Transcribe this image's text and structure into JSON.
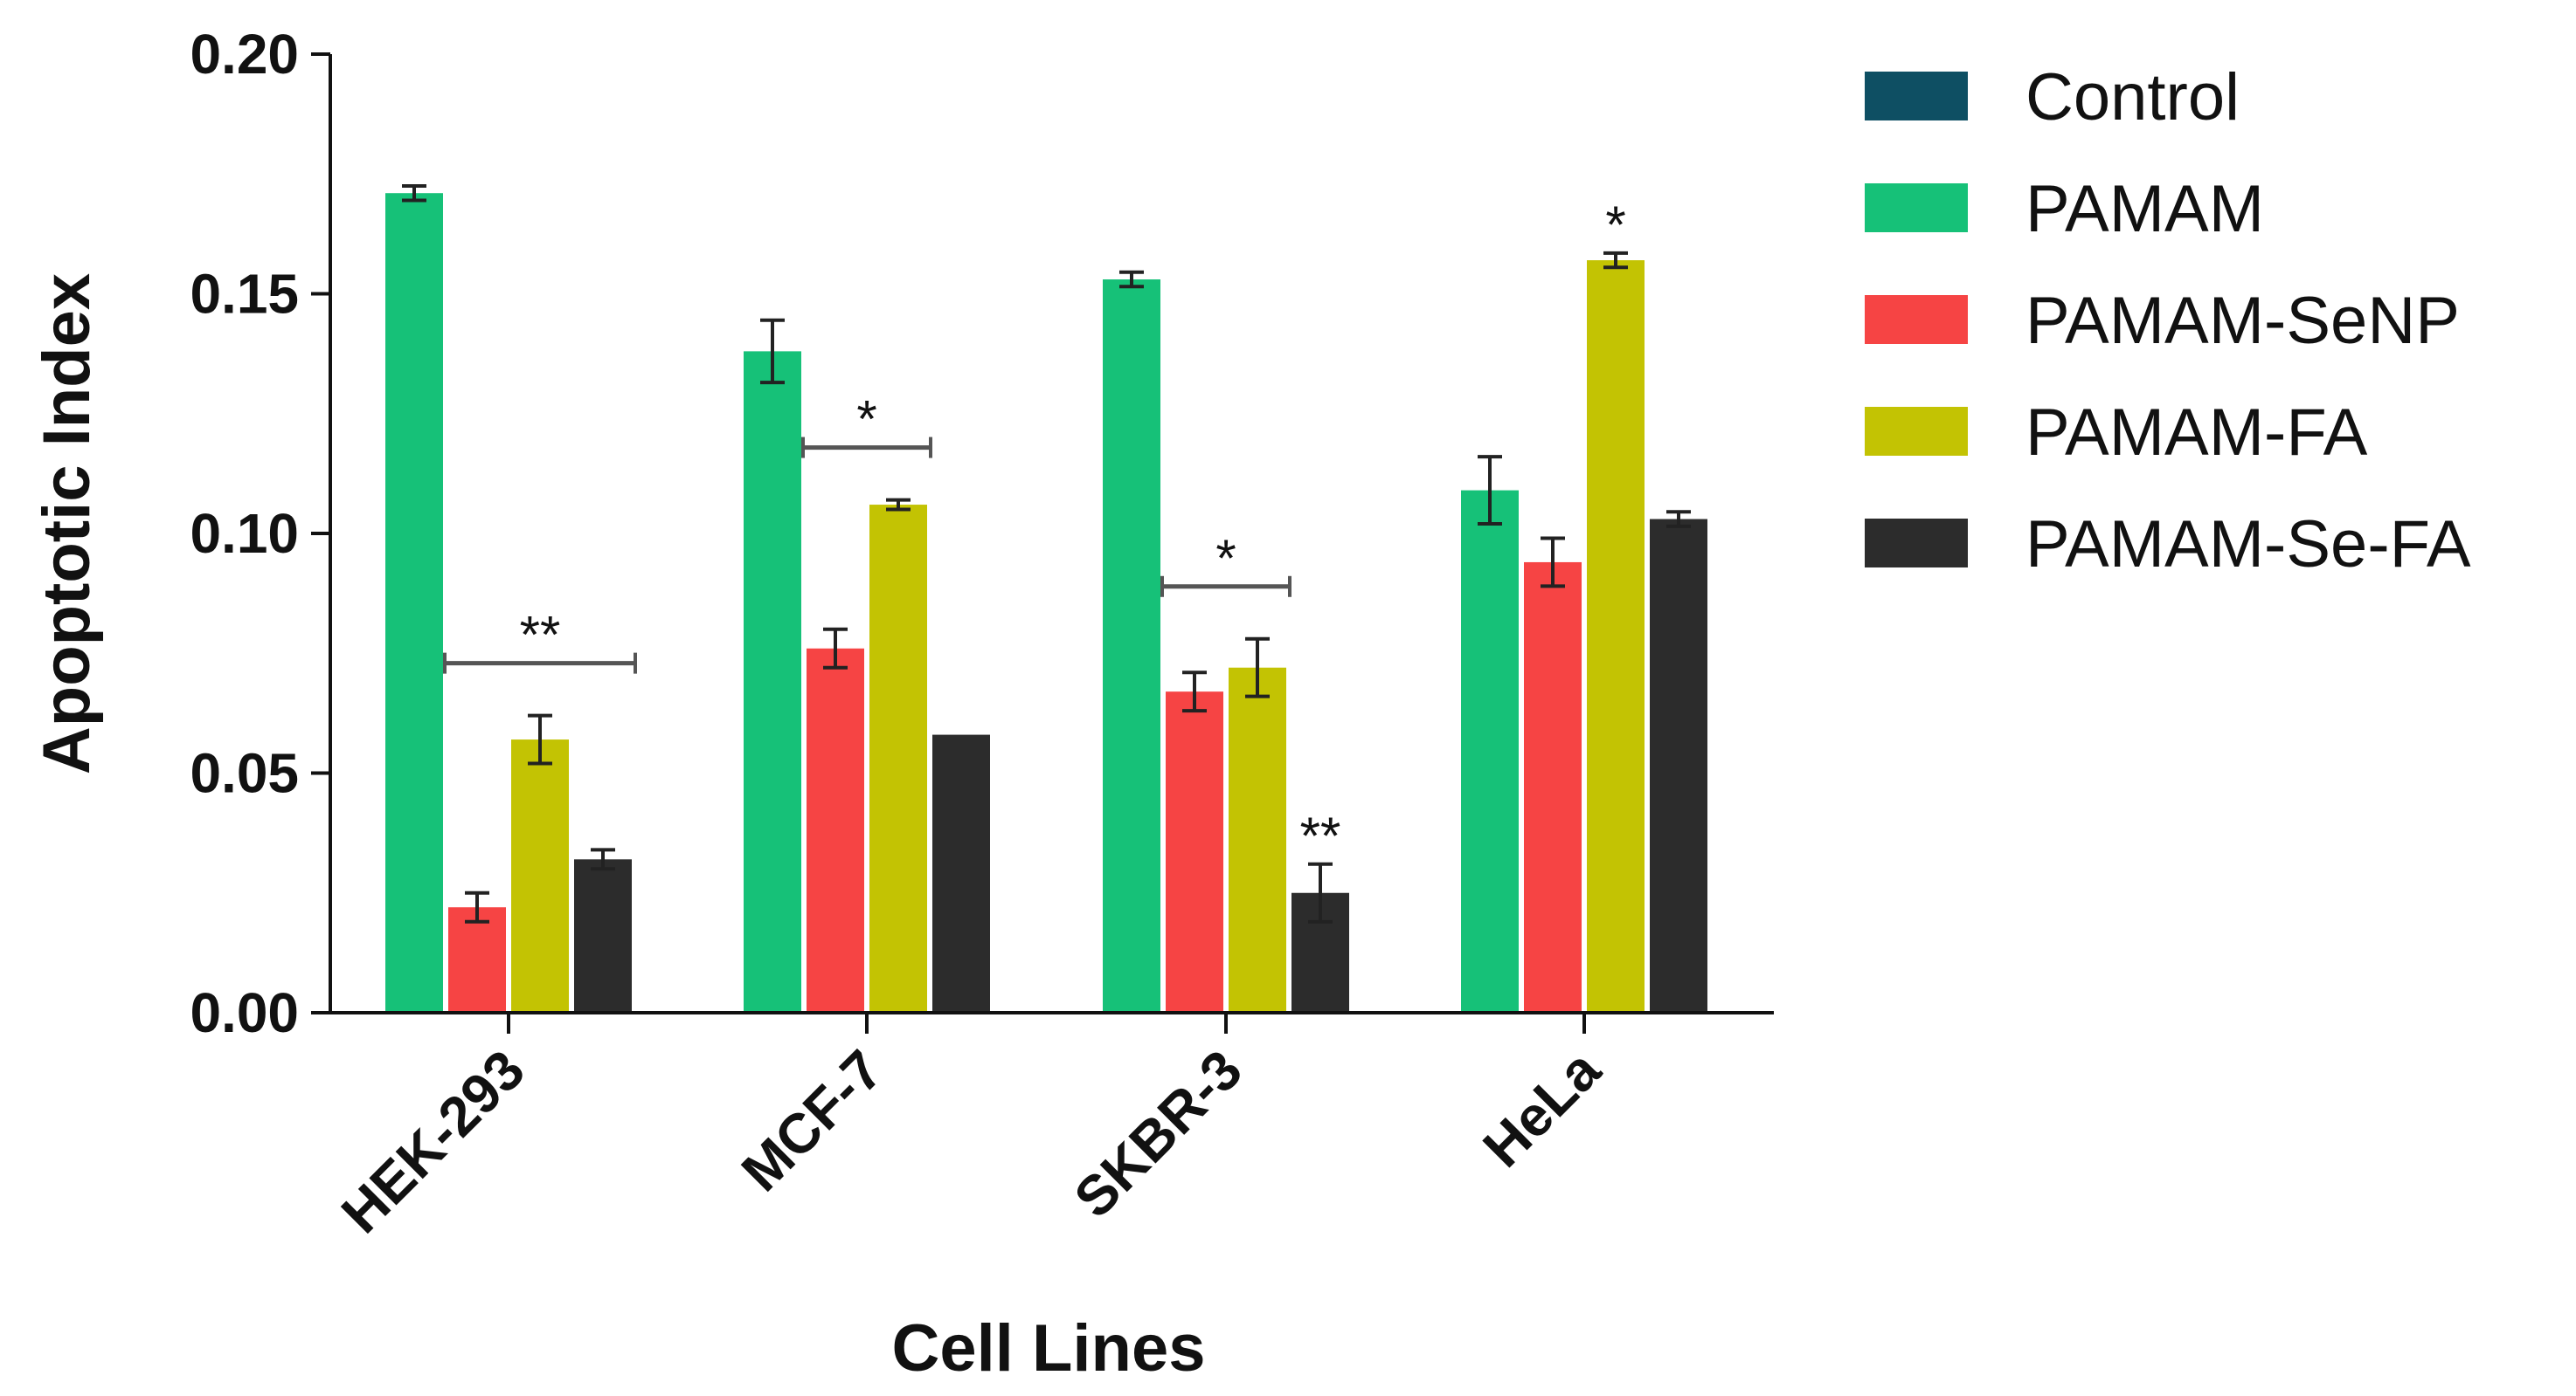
{
  "chart_data": {
    "type": "bar",
    "title": "",
    "xlabel": "Cell Lines",
    "ylabel": "Apoptotic Index",
    "ylim": [
      0,
      0.2
    ],
    "yticks": [
      "0.00",
      "0.05",
      "0.10",
      "0.15",
      "0.20"
    ],
    "ytick_values": [
      0,
      0.05,
      0.1,
      0.15,
      0.2
    ],
    "categories": [
      "HEK-293",
      "MCF-7",
      "SKBR-3",
      "HeLa"
    ],
    "series": [
      {
        "name": "Control",
        "color": "#0e4f63",
        "values": [
          0,
          0,
          0,
          0
        ],
        "errors": [
          0,
          0,
          0,
          0
        ]
      },
      {
        "name": "PAMAM",
        "color": "#16c178",
        "values": [
          0.171,
          0.138,
          0.153,
          0.109
        ],
        "errors": [
          0.0015,
          0.0065,
          0.0015,
          0.007
        ]
      },
      {
        "name": "PAMAM-SeNP",
        "color": "#f64444",
        "values": [
          0.022,
          0.076,
          0.067,
          0.094
        ],
        "errors": [
          0.003,
          0.004,
          0.004,
          0.005
        ]
      },
      {
        "name": "PAMAM-FA",
        "color": "#c3c303",
        "values": [
          0.057,
          0.106,
          0.072,
          0.157
        ],
        "errors": [
          0.005,
          0.001,
          0.006,
          0.0015
        ]
      },
      {
        "name": "PAMAM-Se-FA",
        "color": "#2c2c2c",
        "values": [
          0.032,
          0.058,
          0.025,
          0.103
        ],
        "errors": [
          0.002,
          0,
          0.006,
          0.0015
        ]
      }
    ],
    "significance": [
      {
        "label": "**",
        "category": 0,
        "from_series": 2,
        "to_series": 4,
        "bracket": true
      },
      {
        "label": "*",
        "category": 1,
        "from_series": 2,
        "to_series": 3,
        "bracket": true
      },
      {
        "label": "*",
        "category": 2,
        "from_series": 2,
        "to_series": 3,
        "bracket": true
      },
      {
        "label": "**",
        "category": 2,
        "series": 4,
        "bracket": false
      },
      {
        "label": "*",
        "category": 3,
        "series": 3,
        "bracket": false
      }
    ],
    "legend_position": "right"
  }
}
